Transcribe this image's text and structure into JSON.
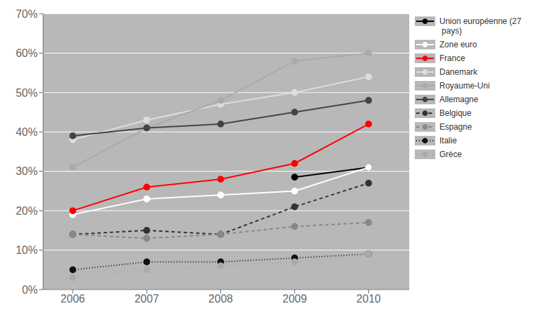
{
  "chart_data": {
    "type": "line",
    "x": [
      2006,
      2007,
      2008,
      2009,
      2010
    ],
    "xlim": [
      2005.6,
      2010.55
    ],
    "xticks": [
      2006,
      2007,
      2008,
      2009,
      2010
    ],
    "ylim": [
      0.0,
      0.7
    ],
    "yticks": [
      {
        "value": 0.0,
        "label": "0%"
      },
      {
        "value": 0.1,
        "label": "10%"
      },
      {
        "value": 0.2,
        "label": "20%"
      },
      {
        "value": 0.3,
        "label": "30%"
      },
      {
        "value": 0.4,
        "label": "40%"
      },
      {
        "value": 0.5,
        "label": "50%"
      },
      {
        "value": 0.6,
        "label": "60%"
      },
      {
        "value": 0.7,
        "label": "70%"
      }
    ],
    "grid": true,
    "legend": "right",
    "series": [
      {
        "name": "Union européenne (27\n pays)",
        "color": "#000000",
        "line_style": "solid",
        "marker": "circle",
        "values": [
          null,
          null,
          null,
          0.285,
          0.31
        ]
      },
      {
        "name": "Zone euro",
        "color": "#ffffff",
        "line_style": "solid",
        "marker": "circle",
        "values": [
          0.19,
          0.23,
          0.24,
          0.25,
          0.31
        ]
      },
      {
        "name": "France",
        "color": "#ff0000",
        "line_style": "solid",
        "marker": "circle",
        "values": [
          0.2,
          0.26,
          0.28,
          0.32,
          0.42
        ]
      },
      {
        "name": "Danemark",
        "color": "#dddddd",
        "line_style": "solid",
        "marker": "circle",
        "values": [
          0.38,
          0.43,
          0.47,
          0.5,
          0.54
        ]
      },
      {
        "name": "Royaume-Uni",
        "color": "#aaaaaa",
        "line_style": "solid",
        "marker": "circle",
        "values": [
          0.31,
          0.41,
          0.48,
          0.58,
          0.6
        ]
      },
      {
        "name": "Allemagne",
        "color": "#444444",
        "line_style": "solid",
        "marker": "circle",
        "values": [
          0.39,
          0.41,
          0.42,
          0.45,
          0.48
        ]
      },
      {
        "name": "Belgique",
        "color": "#333333",
        "line_style": "dashed",
        "marker": "circle",
        "values": [
          0.14,
          0.15,
          0.14,
          0.21,
          0.27
        ]
      },
      {
        "name": "Espagne",
        "color": "#888888",
        "line_style": "dashed",
        "marker": "circle",
        "values": [
          0.14,
          0.13,
          0.14,
          0.16,
          0.17
        ]
      },
      {
        "name": "Italie",
        "color": "#111111",
        "line_style": "dotted",
        "marker": "circle",
        "values": [
          0.05,
          0.07,
          0.07,
          0.08,
          0.09
        ]
      },
      {
        "name": "Grèce",
        "color": "#aaaaaa",
        "line_style": "dotted",
        "marker": "circle",
        "values": [
          0.03,
          0.05,
          0.06,
          0.07,
          0.09
        ]
      }
    ]
  }
}
